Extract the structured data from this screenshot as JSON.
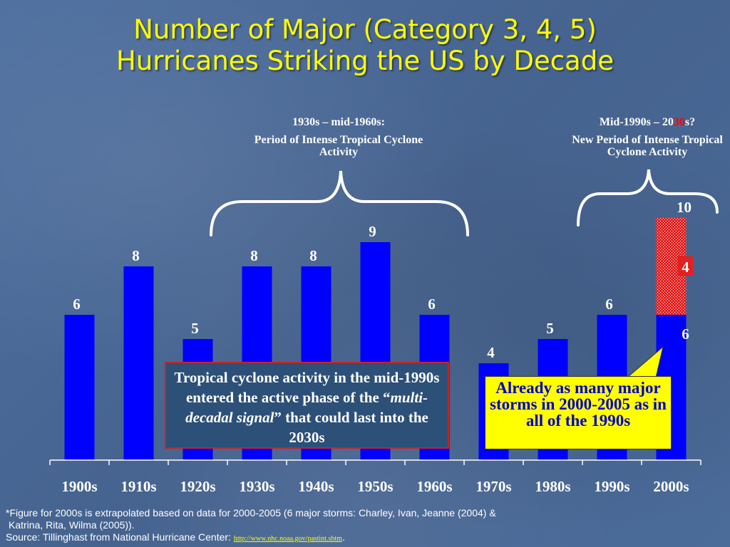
{
  "title": {
    "line1": "Number of Major (Category 3, 4, 5)",
    "line2": "Hurricanes Striking the US by Decade"
  },
  "chart_data": {
    "type": "bar",
    "categories": [
      "1900s",
      "1910s",
      "1920s",
      "1930s",
      "1940s",
      "1950s",
      "1960s",
      "1970s",
      "1980s",
      "1990s",
      "2000s"
    ],
    "values": [
      6,
      8,
      5,
      8,
      8,
      9,
      6,
      4,
      5,
      6,
      6
    ],
    "extrapolated": {
      "category": "2000s",
      "base": 6,
      "added": 4,
      "total": 10
    },
    "value_labels": [
      "6",
      "8",
      "5",
      "8",
      "8",
      "9",
      "6",
      "4",
      "5",
      "6",
      "6"
    ],
    "extrapolated_label": "4",
    "total_label": "10",
    "ylim": [
      0,
      10
    ],
    "colors": {
      "bar": "#0000ff",
      "extrapolated": "#e32020",
      "label": "#ffffff"
    }
  },
  "annotations": {
    "period1": {
      "head": "1930s – mid-1960s:",
      "body": "Period of Intense Tropical Cyclone Activity"
    },
    "period2": {
      "head_pre": "Mid-1990s – 20",
      "head_red": "30",
      "head_post": "s?",
      "body": "New Period of Intense Tropical Cyclone Activity"
    },
    "box1": {
      "pre": "Tropical cyclone activity in the mid-1990s entered the active phase of the “",
      "italic": "multi-decadal signal",
      "post": "” that could last into the 2030s"
    },
    "box2": "Already as many major storms in 2000-2005 as in all of the 1990s"
  },
  "footnote": {
    "line1": "*Figure for 2000s is extrapolated based on data for 2000-2005 (6 major storms: Charley, Ivan, Jeanne (2004) &",
    "line2": "Katrina, Rita, Wilma (2005)).",
    "source": "Source: Tillinghast from National Hurricane Center: ",
    "link": "http://www.nhc.noaa.gov/pastint.shtm",
    "period": "."
  }
}
